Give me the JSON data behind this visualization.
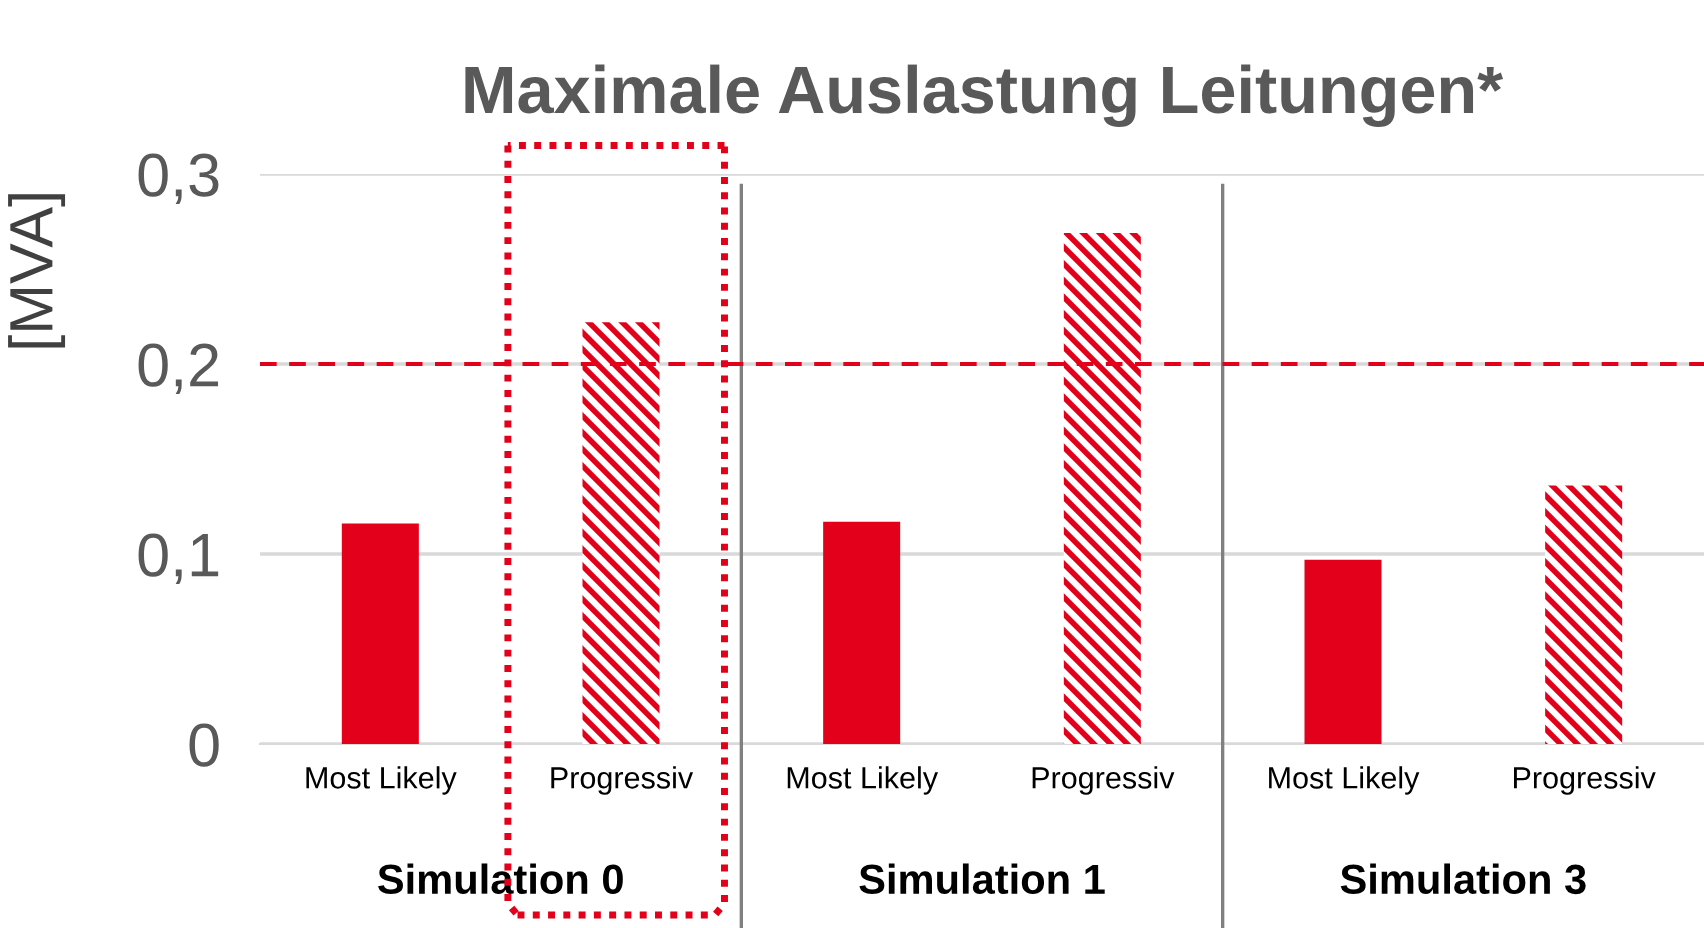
{
  "chart_data": {
    "type": "bar",
    "title": "Maximale Auslastung Leitungen*",
    "ylabel": "[MVA]",
    "categories": [
      "Most Likely",
      "Progressiv",
      "Most Likely",
      "Progressiv",
      "Most Likely",
      "Progressiv"
    ],
    "series": [
      {
        "color": "#e2001a",
        "values": [
          0.116,
          null,
          0.117,
          null,
          0.097,
          null
        ]
      },
      {
        "color": "#e2001a",
        "values": [
          null,
          0.222,
          null,
          0.269,
          null,
          0.136
        ]
      }
    ],
    "ylim": [
      0,
      0.3
    ],
    "yticks": [
      {
        "value": 0,
        "label": "0"
      },
      {
        "value": 0.1,
        "label": "0,1"
      },
      {
        "value": 0.2,
        "label": "0,2"
      },
      {
        "value": 0.3,
        "label": "0,3"
      }
    ],
    "grid": "y",
    "ref_lines": [
      {
        "axis": "y",
        "value": 0.2,
        "color": "#e2001a",
        "line_style": "dashed"
      }
    ],
    "annotations": [
      "Simulation 0",
      "Simulation 1",
      "Simulation 3"
    ]
  }
}
